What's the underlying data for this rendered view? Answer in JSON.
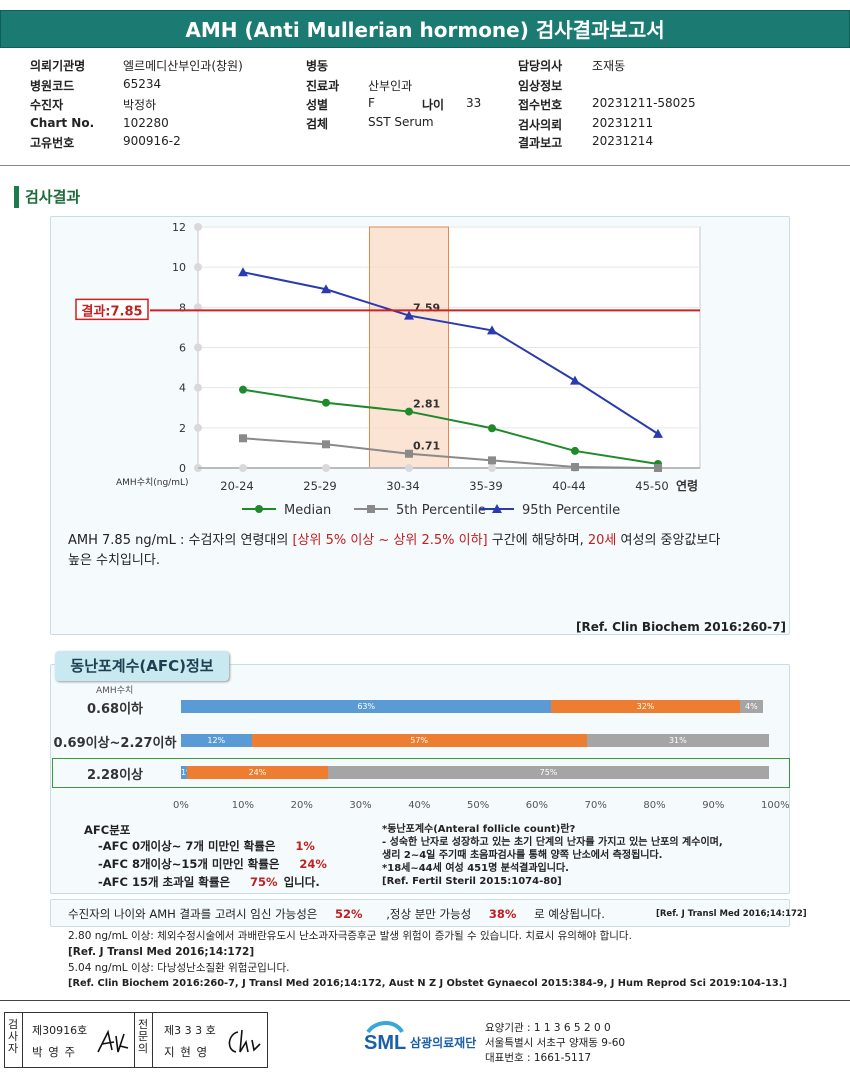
{
  "title": "AMH (Anti Mullerian hormone) 검사결과보고서",
  "info": {
    "col1": [
      {
        "k": "의뢰기관명",
        "v": "엘르메디산부인과(창원)"
      },
      {
        "k": "병원코드",
        "v": "65234"
      },
      {
        "k": "수진자",
        "v": "박정하"
      },
      {
        "k": "Chart No.",
        "v": "102280"
      },
      {
        "k": "고유번호",
        "v": "900916-2"
      }
    ],
    "col2": [
      {
        "k": "병동",
        "v": ""
      },
      {
        "k": "진료과",
        "v": "산부인과"
      },
      {
        "k": "성별",
        "v": "F"
      },
      {
        "k": "검체",
        "v": "SST Serum"
      }
    ],
    "age_label": "나이",
    "age_value": "33",
    "col3": [
      {
        "k": "담당의사",
        "v": "조재동"
      },
      {
        "k": "임상정보",
        "v": ""
      },
      {
        "k": "접수번호",
        "v": "20231211-58025"
      },
      {
        "k": "검사의뢰",
        "v": "20231211"
      },
      {
        "k": "결과보고",
        "v": "20231214"
      }
    ]
  },
  "section_title": "검사결과",
  "chart_data": {
    "type": "line",
    "categories": [
      "20-24",
      "25-29",
      "30-34",
      "35-39",
      "40-44",
      "45-50"
    ],
    "x_axis_suffix": "연령",
    "y_axis_unit_label": "AMH수치(ng/mL)",
    "ylim": [
      0,
      12
    ],
    "yticks": [
      0,
      2,
      4,
      6,
      8,
      10,
      12
    ],
    "highlight_category": "30-34",
    "result_line": {
      "value": 7.85,
      "label": "결과:7.85"
    },
    "series": [
      {
        "name": "Median",
        "values": [
          3.9,
          3.25,
          2.81,
          1.98,
          0.85,
          0.2
        ],
        "color": "#1f8a2a",
        "marker": "circle",
        "point_label": "2.81"
      },
      {
        "name": "5th Percentile",
        "values": [
          1.48,
          1.18,
          0.71,
          0.38,
          0.05,
          0.0
        ],
        "color": "#8a8a8a",
        "marker": "square",
        "point_label": "0.71"
      },
      {
        "name": "95th Percentile",
        "values": [
          9.75,
          8.9,
          7.59,
          6.85,
          4.35,
          1.7
        ],
        "color": "#2a3ab0",
        "marker": "triangle",
        "point_label": "7.59"
      }
    ]
  },
  "desc": {
    "part1": "AMH  7.85 ng/mL : 수검자의 연령대의 ",
    "part2": "[상위 5% 이상 ~ 상위 2.5% 이하]",
    "part3": "  구간에 해당하며, ",
    "part4": "20세",
    "part5": " 여성의 중앙값보다",
    "line2": "높은 수치입니다."
  },
  "ref1": "[Ref. Clin Biochem 2016:260-7]",
  "afc": {
    "title": "동난포계수(AFC)정보",
    "amh_label": "AMH수치",
    "rows": [
      {
        "label": "0.68이하",
        "segments": [
          {
            "v": 63,
            "t": "63%",
            "c": "#5b9bd5"
          },
          {
            "v": 32,
            "t": "32%",
            "c": "#ed7d31"
          },
          {
            "v": 4,
            "t": "4%",
            "c": "#a5a5a5"
          }
        ]
      },
      {
        "label": "0.69이상~2.27이하",
        "segments": [
          {
            "v": 12,
            "t": "12%",
            "c": "#5b9bd5"
          },
          {
            "v": 57,
            "t": "57%",
            "c": "#ed7d31"
          },
          {
            "v": 31,
            "t": "31%",
            "c": "#a5a5a5"
          }
        ]
      },
      {
        "label": "2.28이상",
        "segments": [
          {
            "v": 1,
            "t": "1%",
            "c": "#5b9bd5"
          },
          {
            "v": 24,
            "t": "24%",
            "c": "#ed7d31"
          },
          {
            "v": 75,
            "t": "75%",
            "c": "#a5a5a5"
          }
        ]
      }
    ],
    "ticks": [
      "0%",
      "10%",
      "20%",
      "30%",
      "40%",
      "50%",
      "60%",
      "70%",
      "80%",
      "90%",
      "100%"
    ],
    "dist_title": "AFC분포",
    "dist": [
      {
        "t": "-AFC  0개이상~ 7개 미만인 확률은",
        "p": "1%",
        "end": ""
      },
      {
        "t": "-AFC  8개이상~15개 미만인 확률은",
        "p": "24%",
        "end": ""
      },
      {
        "t": "-AFC  15개 초과일 확률은",
        "p": "75%",
        "end": "입니다."
      }
    ],
    "note1": "*동난포계수(Anteral follicle count)란?",
    "note2": "- 성숙한 난자로 성장하고 있는 초기 단계의 난자를 가지고 있는 난포의 계수이며,",
    "note3": "  생리 2~4일 주기때 초음파검사를 통해 양쪽 난소에서 측정됩니다.",
    "note4": "*18세~44세 여성 451명 분석결과입니다.",
    "note5": "[Ref. Fertil Steril 2015:1074-80]"
  },
  "prob": {
    "t1": "수진자의  나이와 AMH 결과를 고려시 임신 가능성은",
    "p1": "52%",
    "t2": ",정상 분만 가능성",
    "p2": "38%",
    "t3": "로 예상됩니다.",
    "ref": "[Ref. J Transl Med 2016;14:172]"
  },
  "notes_bottom": {
    "l1": "2.80  ng/mL  이상: 체외수정시술에서 과배란유도시 난소과자극증후군 발생 위험이 증가될 수 있습니다. 치료시 유의해야 합니다.",
    "l2": "[Ref. J Transl Med 2016;14:172]",
    "l3": "5.04  ng/mL  이상: 다낭성난소질환 위험군입니다.",
    "l4": "[Ref. Clin Biochem 2016:260-7, J Transl Med 2016;14:172, Aust N Z J Obstet Gynaecol 2015:384-9, J Hum Reprod Sci 2019:104-13.]"
  },
  "footer": {
    "c1_v": "검사자",
    "c1_no": "제30916호",
    "c1_name": "박 영 주",
    "c2_v": "전문의",
    "c2_no": "제3 3 3 호",
    "c2_name": "지 현 영",
    "logo": "SML",
    "org": "삼광의료재단",
    "addr1": "요양기관 : 1 1 3 6 5 2 0 0",
    "addr2": "서울특별시 서초구 양재동 9-60",
    "addr3": "대표번호 : 1661-5117"
  }
}
